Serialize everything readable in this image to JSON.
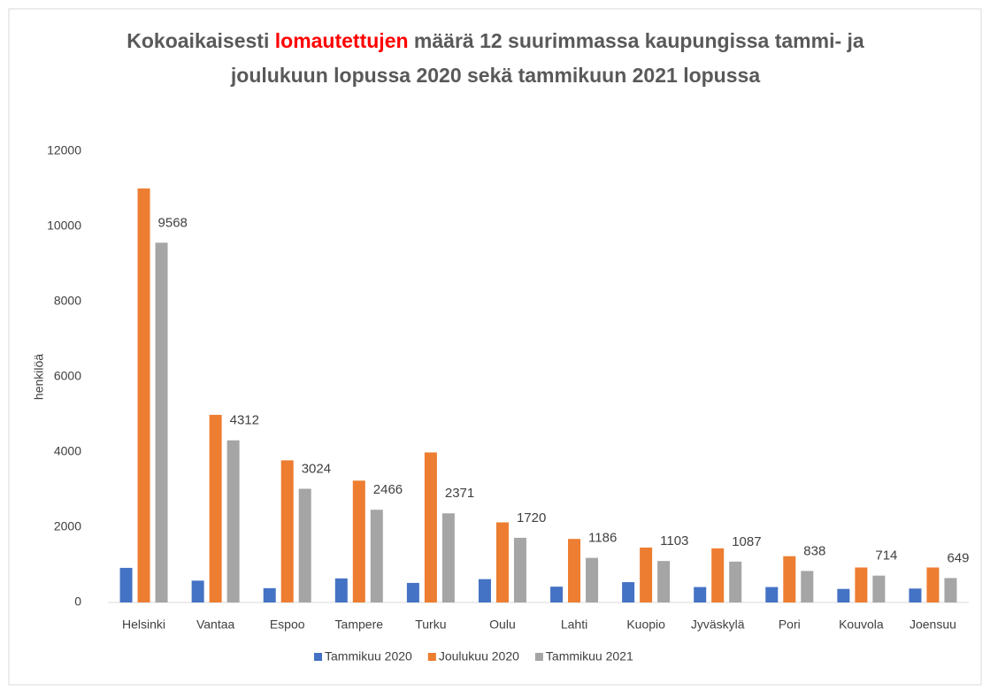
{
  "chart_data": {
    "type": "bar",
    "title": [
      "Kokoaikaisesti",
      "lomautettujen",
      "määrä 12 suurimmassa kaupungissa tammi- ja",
      "joulukuun lopussa 2020 sekä tammikuun 2021 lopussa"
    ],
    "title_highlight": {
      "index": 1,
      "color": "#ff0000"
    },
    "ylabel": "henkilöä",
    "categories": [
      "Helsinki",
      "Vantaa",
      "Espoo",
      "Tampere",
      "Turku",
      "Oulu",
      "Lahti",
      "Kuopio",
      "Jyväskylä",
      "Pori",
      "Kouvola",
      "Joensuu"
    ],
    "series": [
      {
        "name": "Tammikuu 2020",
        "color": "#4472c4",
        "values": [
          920,
          580,
          380,
          640,
          520,
          620,
          420,
          540,
          410,
          410,
          360,
          370
        ]
      },
      {
        "name": "Joulukuu 2020",
        "color": "#ed7d31",
        "values": [
          11010,
          4990,
          3780,
          3240,
          3990,
          2130,
          1690,
          1460,
          1440,
          1230,
          930,
          930
        ]
      },
      {
        "name": "Tammikuu 2021",
        "color": "#a5a5a5",
        "values": [
          9568,
          4312,
          3024,
          2466,
          2371,
          1720,
          1186,
          1103,
          1087,
          838,
          714,
          649
        ],
        "data_labels": true
      }
    ],
    "ylim": [
      0,
      12000
    ],
    "yticks": [
      0,
      2000,
      4000,
      6000,
      8000,
      10000,
      12000
    ],
    "grid": false,
    "legend": "bottom"
  }
}
